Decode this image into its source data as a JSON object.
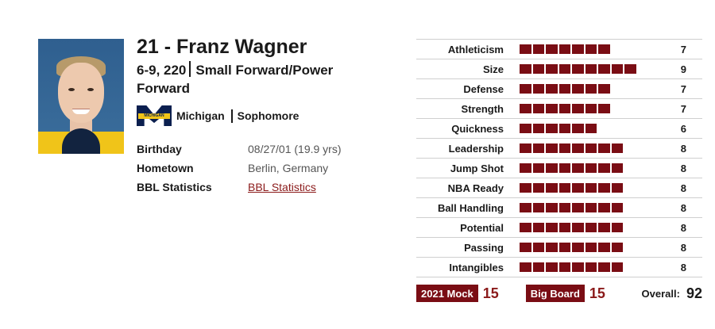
{
  "player": {
    "name": "21 - Franz Wagner",
    "height_weight": "6-9, 220",
    "position": "Small Forward/Power Forward",
    "school": "Michigan",
    "logo_text": "MICHIGAN",
    "class": "Sophomore"
  },
  "info": [
    {
      "label": "Birthday",
      "value": "08/27/01 (19.9 yrs)",
      "is_link": false
    },
    {
      "label": "Hometown",
      "value": "Berlin, Germany",
      "is_link": false
    },
    {
      "label": "BBL Statistics",
      "value": "BBL Statistics",
      "is_link": true
    }
  ],
  "ratings": [
    {
      "label": "Athleticism",
      "value": 7
    },
    {
      "label": "Size",
      "value": 9
    },
    {
      "label": "Defense",
      "value": 7
    },
    {
      "label": "Strength",
      "value": 7
    },
    {
      "label": "Quickness",
      "value": 6
    },
    {
      "label": "Leadership",
      "value": 8
    },
    {
      "label": "Jump Shot",
      "value": 8
    },
    {
      "label": "NBA Ready",
      "value": 8
    },
    {
      "label": "Ball Handling",
      "value": 8
    },
    {
      "label": "Potential",
      "value": 8
    },
    {
      "label": "Passing",
      "value": 8
    },
    {
      "label": "Intangibles",
      "value": 8
    }
  ],
  "footer": {
    "mock_label": "2021 Mock",
    "mock_value": "15",
    "board_label": "Big Board",
    "board_value": "15",
    "overall_label": "Overall:",
    "overall_value": "92"
  },
  "colors": {
    "accent": "#7a0d14",
    "link": "#8b1a1a"
  }
}
